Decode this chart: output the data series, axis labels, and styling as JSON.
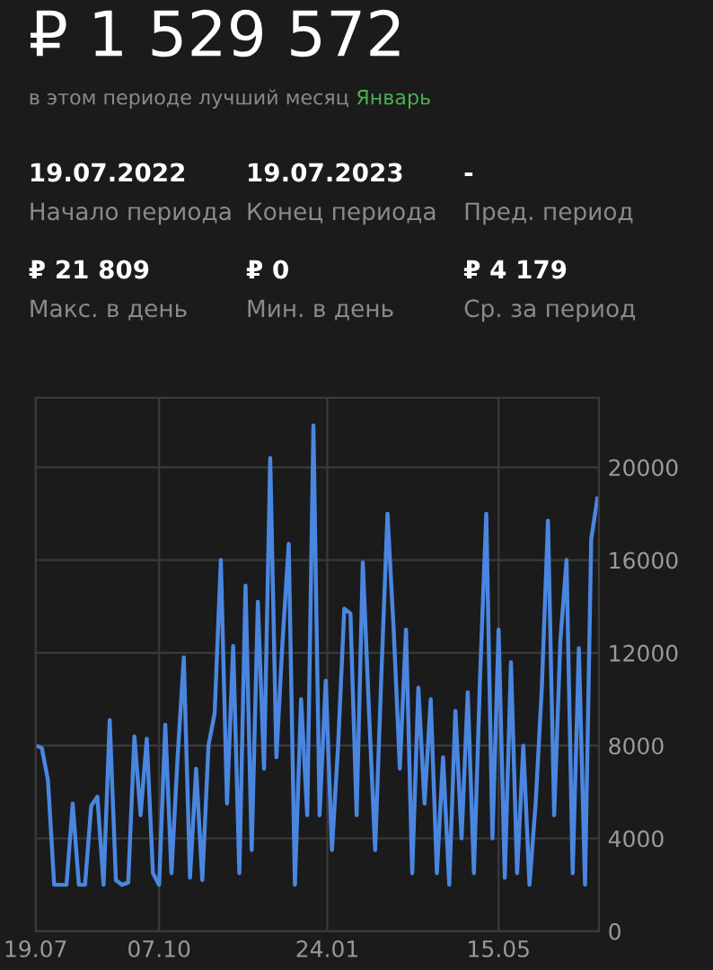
{
  "chart_data": {
    "type": "line",
    "title": "₽ 1 529 572",
    "subtitle": "в этом периоде лучший месяц Январь",
    "annotations": [
      "19.07.2022",
      "Начало периода",
      "19.07.2023",
      "Конец периода",
      "-",
      "Пред. период",
      "₽ 21 809",
      "Макс. в день",
      "₽ 0",
      "Мин. в день",
      "₽ 4 179",
      "Ср. за период"
    ],
    "x": [
      "2022-07-19",
      "2022-07-23",
      "2022-07-27",
      "2022-07-31",
      "2022-08-04",
      "2022-08-08",
      "2022-08-12",
      "2022-08-16",
      "2022-08-20",
      "2022-08-24",
      "2022-08-28",
      "2022-09-01",
      "2022-09-05",
      "2022-09-09",
      "2022-09-13",
      "2022-09-17",
      "2022-09-21",
      "2022-09-25",
      "2022-09-29",
      "2022-10-03",
      "2022-10-07",
      "2022-10-11",
      "2022-10-15",
      "2022-10-19",
      "2022-10-23",
      "2022-10-27",
      "2022-10-31",
      "2022-11-04",
      "2022-11-08",
      "2022-11-12",
      "2022-11-16",
      "2022-11-20",
      "2022-11-24",
      "2022-11-28",
      "2022-12-02",
      "2022-12-06",
      "2022-12-10",
      "2022-12-14",
      "2022-12-18",
      "2022-12-22",
      "2022-12-26",
      "2022-12-30",
      "2023-01-03",
      "2023-01-07",
      "2023-01-11",
      "2023-01-15",
      "2023-01-19",
      "2023-01-23",
      "2023-01-27",
      "2023-01-31",
      "2023-02-04",
      "2023-02-08",
      "2023-02-12",
      "2023-02-16",
      "2023-02-20",
      "2023-02-24",
      "2023-02-28",
      "2023-03-04",
      "2023-03-08",
      "2023-03-12",
      "2023-03-16",
      "2023-03-20",
      "2023-03-24",
      "2023-03-28",
      "2023-04-01",
      "2023-04-05",
      "2023-04-09",
      "2023-04-13",
      "2023-04-17",
      "2023-04-21",
      "2023-04-25",
      "2023-04-29",
      "2023-05-03",
      "2023-05-07",
      "2023-05-11",
      "2023-05-15",
      "2023-05-19",
      "2023-05-23",
      "2023-05-27",
      "2023-05-31",
      "2023-06-04",
      "2023-06-08",
      "2023-06-12",
      "2023-06-16",
      "2023-06-20",
      "2023-06-24",
      "2023-06-28",
      "2023-07-02",
      "2023-07-06",
      "2023-07-10",
      "2023-07-14",
      "2023-07-18"
    ],
    "series": [
      {
        "color": "#4a86e0",
        "values": [
          8000,
          7900,
          6500,
          2000,
          2000,
          2000,
          5500,
          2000,
          2000,
          5400,
          5800,
          2000,
          9100,
          2200,
          2000,
          2100,
          8400,
          5000,
          8300,
          2500,
          2000,
          8900,
          2500,
          7500,
          11800,
          2300,
          7000,
          2200,
          8000,
          9400,
          16000,
          5500,
          12300,
          2500,
          14900,
          3500,
          14200,
          7000,
          20400,
          7500,
          12500,
          16700,
          2000,
          10000,
          5000,
          21800,
          5000,
          10800,
          3500,
          8000,
          13900,
          13700,
          5000,
          15900,
          9500,
          3500,
          11000,
          18000,
          13000,
          7000,
          13000,
          2500,
          10500,
          5500,
          10000,
          2500,
          7500,
          2000,
          9500,
          4000,
          10300,
          2500,
          11000,
          18000,
          4000,
          13000,
          2300,
          11600,
          2500,
          8000,
          2000,
          5500,
          10500,
          17700,
          5000,
          12500,
          16000,
          2500,
          12200,
          2000,
          16900,
          18650
        ]
      }
    ],
    "xlim": [
      "2022-07-19",
      "2023-07-19"
    ],
    "xticks": [
      {
        "value": "2022-07-19",
        "label": "19.07"
      },
      {
        "value": "2022-10-07",
        "label": "07.10"
      },
      {
        "value": "2023-01-24",
        "label": "24.01"
      },
      {
        "value": "2023-05-15",
        "label": "15.05"
      }
    ],
    "ylim": [
      0,
      23000
    ],
    "yticks": [
      0,
      4000,
      8000,
      12000,
      16000,
      20000
    ],
    "grid": true,
    "legend": false,
    "marker": "none",
    "line_style": "solid"
  }
}
